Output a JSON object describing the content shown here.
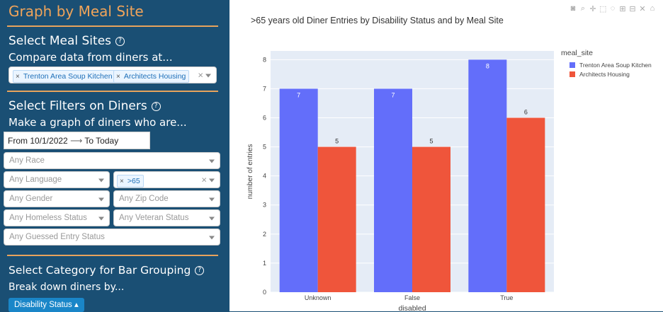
{
  "sidebar": {
    "title": "Graph by Meal Site",
    "meal_sites": {
      "heading": "Select Meal Sites",
      "help": "?",
      "subheading": "Compare data from diners at...",
      "selected": [
        "Trenton Area Soup Kitchen",
        "Architects Housing"
      ]
    },
    "filters": {
      "heading": "Select Filters on Diners",
      "help": "?",
      "subheading": "Make a graph of diners who are...",
      "date_from": "From 10/1/2022",
      "date_arrow": "⟶",
      "date_to": "To Today",
      "race_placeholder": "Any Race",
      "language_placeholder": "Any Language",
      "age_selected": ">65",
      "gender_placeholder": "Any Gender",
      "zip_placeholder": "Any Zip Code",
      "homeless_placeholder": "Any Homeless Status",
      "veteran_placeholder": "Any Veteran Status",
      "guessed_placeholder": "Any Guessed Entry Status"
    },
    "grouping": {
      "heading": "Select Category for Bar Grouping",
      "help": "?",
      "subheading": "Break down diners by...",
      "button": "Disability Status ▴"
    },
    "accent_color": "#e8a35c"
  },
  "chart_data": {
    "type": "bar",
    "title": ">65 years old Diner Entries by Disability Status and by Meal Site",
    "xlabel": "disabled",
    "ylabel": "number of entries",
    "categories": [
      "Unknown",
      "False",
      "True"
    ],
    "series": [
      {
        "name": "Trenton Area Soup Kitchen",
        "color": "#636efa",
        "values": [
          7,
          7,
          8
        ]
      },
      {
        "name": "Architects Housing",
        "color": "#ef553b",
        "values": [
          5,
          5,
          6
        ]
      }
    ],
    "ylim": [
      0,
      8.3
    ],
    "yticks": [
      "0",
      "1",
      "2",
      "3",
      "4",
      "5",
      "6",
      "7",
      "8"
    ],
    "legend_title": "meal_site",
    "legend_position": "top-right",
    "grid": true
  }
}
